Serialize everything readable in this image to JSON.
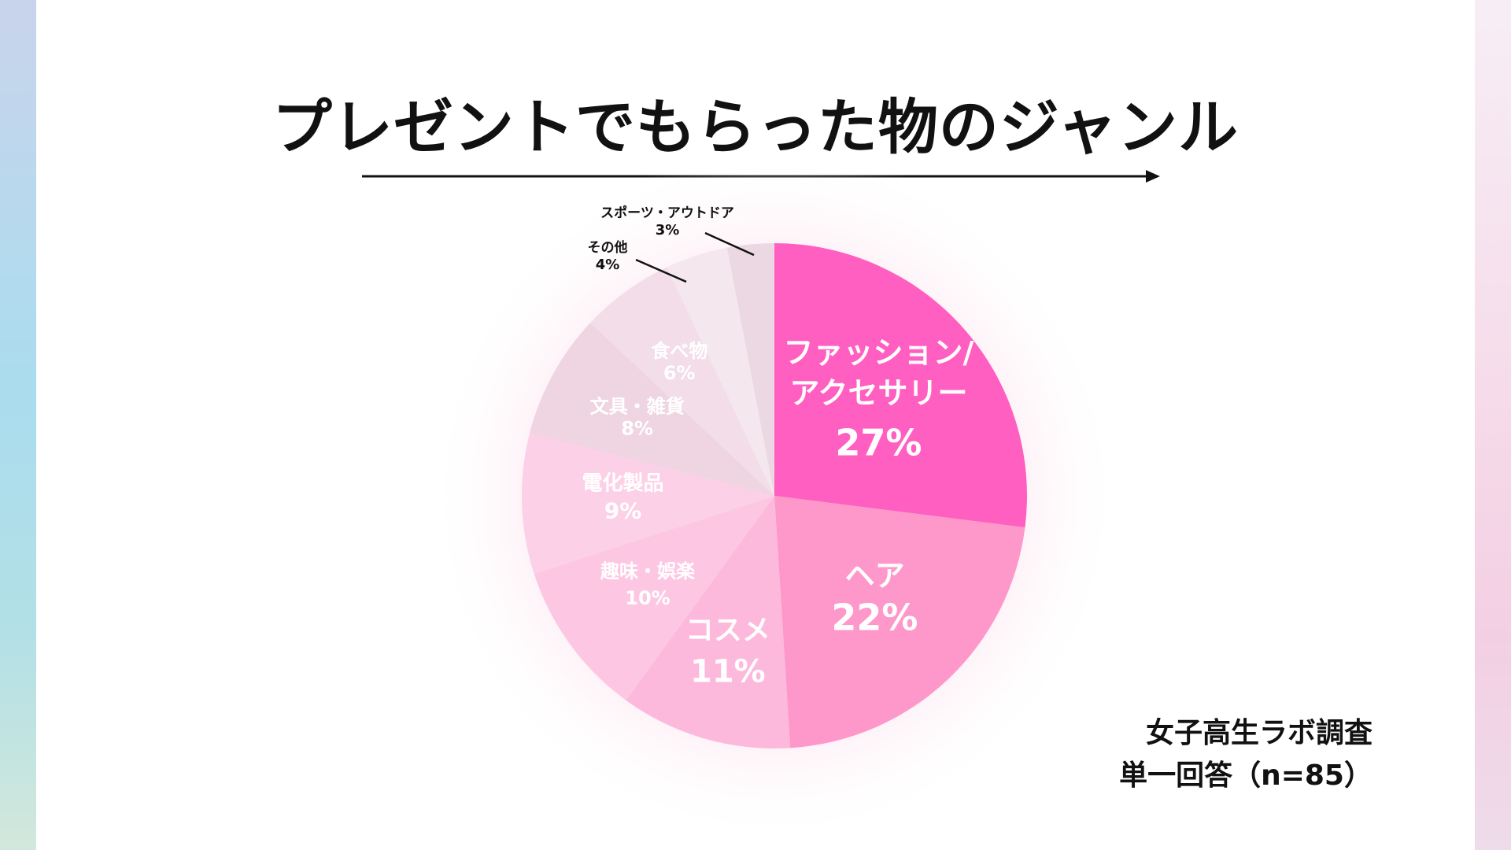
{
  "title": "プレゼントでもらった物のジャンル",
  "source": {
    "line1": "女子高生ラボ調査",
    "line2": "単一回答（n=85）"
  },
  "chart_data": {
    "type": "pie",
    "title": "プレゼントでもらった物のジャンル",
    "unit": "%",
    "slices": [
      {
        "label": "ファッション/\nアクセサリー",
        "value": 27,
        "color": "#ff5fc1"
      },
      {
        "label": "ヘア",
        "value": 22,
        "color": "#fe98cb"
      },
      {
        "label": "コスメ",
        "value": 11,
        "color": "#fdb9dc"
      },
      {
        "label": "趣味・娯楽",
        "value": 10,
        "color": "#fdc7e3"
      },
      {
        "label": "電化製品",
        "value": 9,
        "color": "#fcd0e7"
      },
      {
        "label": "文具・雑貨",
        "value": 8,
        "color": "#efd4e2"
      },
      {
        "label": "食べ物",
        "value": 6,
        "color": "#f2dde8"
      },
      {
        "label": "その他",
        "value": 4,
        "color": "#f4e7ee"
      },
      {
        "label": "スポーツ・アウトドア",
        "value": 3,
        "color": "#ecd8e2"
      }
    ]
  }
}
